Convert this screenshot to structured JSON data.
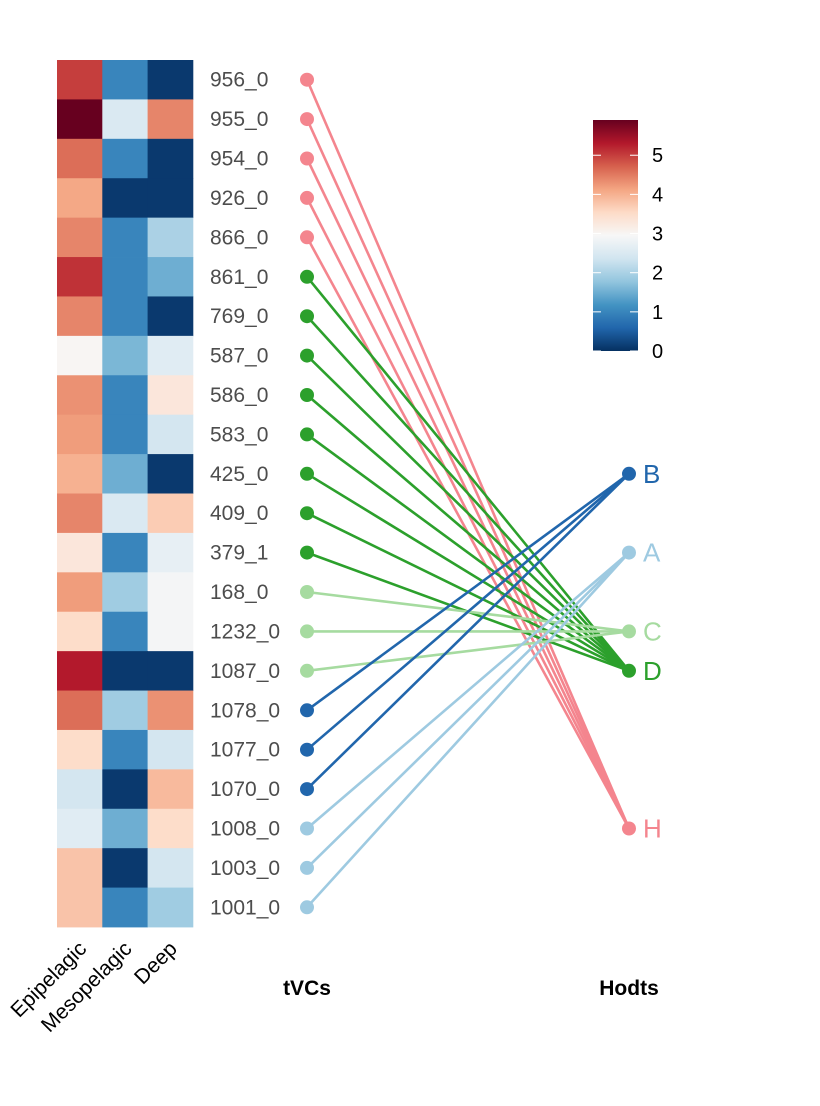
{
  "chart_data": {
    "type": "heatmap",
    "heatmap": {
      "columns": [
        "Epipelagic",
        "Mesopelagic",
        "Deep"
      ],
      "rows": [
        "956_0",
        "955_0",
        "954_0",
        "926_0",
        "866_0",
        "861_0",
        "769_0",
        "587_0",
        "586_0",
        "583_0",
        "425_0",
        "409_0",
        "379_1",
        "168_0",
        "1232_0",
        "1087_0",
        "1078_0",
        "1077_0",
        "1070_0",
        "1008_0",
        "1003_0",
        "1001_0"
      ],
      "values": [
        [
          5.0,
          1.0,
          0.1
        ],
        [
          5.9,
          2.5,
          4.4
        ],
        [
          4.6,
          1.0,
          0.1
        ],
        [
          4.1,
          0.1,
          0.1
        ],
        [
          4.4,
          1.0,
          2.0
        ],
        [
          5.1,
          1.0,
          1.5
        ],
        [
          4.4,
          1.0,
          0.1
        ],
        [
          3.0,
          1.6,
          2.6
        ],
        [
          4.3,
          1.0,
          3.3
        ],
        [
          4.2,
          1.0,
          2.4
        ],
        [
          4.0,
          1.5,
          0.1
        ],
        [
          4.4,
          2.5,
          3.7
        ],
        [
          3.3,
          1.0,
          2.7
        ],
        [
          4.2,
          1.9,
          2.9
        ],
        [
          3.5,
          1.0,
          2.9
        ],
        [
          5.3,
          0.1,
          0.1
        ],
        [
          4.6,
          1.9,
          4.3
        ],
        [
          3.5,
          1.0,
          2.4
        ],
        [
          2.4,
          0.1,
          3.9
        ],
        [
          2.6,
          1.5,
          3.5
        ],
        [
          3.8,
          0.1,
          2.4
        ],
        [
          3.8,
          1.0,
          1.9
        ]
      ],
      "scale": {
        "min": 0,
        "max": 5.9,
        "ticks": [
          0,
          1,
          2,
          3,
          4,
          5
        ]
      }
    },
    "x_axis_titles": {
      "left": "tVCs",
      "right": "Hodts"
    },
    "hosts": [
      {
        "name": "B",
        "color": "#2166ac"
      },
      {
        "name": "A",
        "color": "#9ecae1"
      },
      {
        "name": "C",
        "color": "#a6dba0"
      },
      {
        "name": "D",
        "color": "#2ca02c"
      },
      {
        "name": "H",
        "color": "#f4858e"
      }
    ],
    "links": [
      {
        "tvc": "956_0",
        "host": "H"
      },
      {
        "tvc": "955_0",
        "host": "H"
      },
      {
        "tvc": "954_0",
        "host": "H"
      },
      {
        "tvc": "926_0",
        "host": "H"
      },
      {
        "tvc": "866_0",
        "host": "H"
      },
      {
        "tvc": "861_0",
        "host": "D"
      },
      {
        "tvc": "769_0",
        "host": "D"
      },
      {
        "tvc": "587_0",
        "host": "D"
      },
      {
        "tvc": "586_0",
        "host": "D"
      },
      {
        "tvc": "583_0",
        "host": "D"
      },
      {
        "tvc": "425_0",
        "host": "D"
      },
      {
        "tvc": "409_0",
        "host": "D"
      },
      {
        "tvc": "379_1",
        "host": "D"
      },
      {
        "tvc": "168_0",
        "host": "C"
      },
      {
        "tvc": "1232_0",
        "host": "C"
      },
      {
        "tvc": "1087_0",
        "host": "C"
      },
      {
        "tvc": "1078_0",
        "host": "B"
      },
      {
        "tvc": "1077_0",
        "host": "B"
      },
      {
        "tvc": "1070_0",
        "host": "B"
      },
      {
        "tvc": "1008_0",
        "host": "A"
      },
      {
        "tvc": "1003_0",
        "host": "A"
      },
      {
        "tvc": "1001_0",
        "host": "A"
      }
    ]
  }
}
